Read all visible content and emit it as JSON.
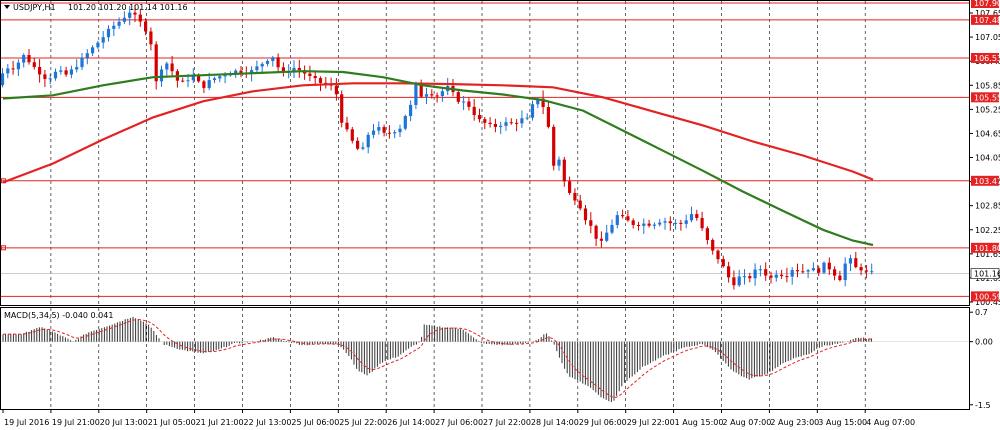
{
  "header": {
    "symbol": "USDJPY,H1",
    "quote": "101.20 101.20 101.14 101.16"
  },
  "colors": {
    "candle_down": "#d40000",
    "candle_up": "#1e74d8",
    "ma_fast": "#e32323",
    "ma_slow": "#2e7d1e",
    "hline": "#e32323",
    "hist": "#333333",
    "signal": "#e32323",
    "grid": "#000000",
    "tag_bg": "#e32323",
    "current_tag_bg": "#ffffff"
  },
  "chart_data": [
    {
      "type": "candlestick",
      "title": "USDJPY,H1",
      "quote": "101.20 101.20 101.14 101.16",
      "ylim": [
        100.45,
        107.9
      ],
      "y_ticks": [
        "107.65",
        "107.05",
        "106.45",
        "105.85",
        "105.25",
        "104.65",
        "104.05",
        "103.45",
        "102.85",
        "102.25",
        "101.65",
        "101.05",
        "100.45"
      ],
      "x_ticks": [
        "19 Jul 2016",
        "19 Jul 21:00",
        "20 Jul 13:00",
        "21 Jul 05:00",
        "21 Jul 21:00",
        "22 Jul 13:00",
        "25 Jul 06:00",
        "25 Jul 22:00",
        "26 Jul 14:00",
        "27 Jul 06:00",
        "27 Jul 22:00",
        "28 Jul 14:00",
        "29 Jul 06:00",
        "29 Jul 22:00",
        "1 Aug 15:00",
        "2 Aug 07:00",
        "2 Aug 23:00",
        "3 Aug 15:00",
        "4 Aug 07:00"
      ],
      "price_path": [
        [
          0,
          105.85
        ],
        [
          8,
          106.3
        ],
        [
          17,
          106.3
        ],
        [
          27,
          106.6
        ],
        [
          37,
          106.3
        ],
        [
          50,
          106.0
        ],
        [
          60,
          106.2
        ],
        [
          70,
          106.1
        ],
        [
          85,
          106.5
        ],
        [
          100,
          106.9
        ],
        [
          115,
          107.3
        ],
        [
          125,
          107.5
        ],
        [
          132,
          107.7
        ],
        [
          140,
          107.5
        ],
        [
          150,
          107.2
        ],
        [
          155,
          106.8
        ],
        [
          160,
          105.7
        ],
        [
          165,
          106.4
        ],
        [
          172,
          106.4
        ],
        [
          178,
          106.0
        ],
        [
          185,
          105.9
        ],
        [
          195,
          106.1
        ],
        [
          205,
          105.8
        ],
        [
          215,
          106.0
        ],
        [
          225,
          106.1
        ],
        [
          235,
          106.2
        ],
        [
          245,
          106.2
        ],
        [
          255,
          106.2
        ],
        [
          265,
          106.4
        ],
        [
          275,
          106.6
        ],
        [
          285,
          106.1
        ],
        [
          295,
          106.3
        ],
        [
          305,
          106.2
        ],
        [
          315,
          106.0
        ],
        [
          325,
          105.9
        ],
        [
          335,
          105.8
        ],
        [
          340,
          105.6
        ],
        [
          345,
          104.9
        ],
        [
          352,
          104.6
        ],
        [
          358,
          104.3
        ],
        [
          365,
          104.2
        ],
        [
          372,
          104.7
        ],
        [
          380,
          104.8
        ],
        [
          388,
          104.6
        ],
        [
          395,
          104.7
        ],
        [
          403,
          104.8
        ],
        [
          408,
          105.1
        ],
        [
          415,
          105.4
        ],
        [
          420,
          106.0
        ],
        [
          425,
          105.5
        ],
        [
          430,
          105.7
        ],
        [
          440,
          105.6
        ],
        [
          450,
          105.8
        ],
        [
          460,
          105.5
        ],
        [
          468,
          105.4
        ],
        [
          474,
          105.3
        ],
        [
          480,
          105.0
        ],
        [
          488,
          104.9
        ],
        [
          495,
          104.8
        ],
        [
          505,
          104.9
        ],
        [
          515,
          104.9
        ],
        [
          525,
          105.0
        ],
        [
          532,
          105.0
        ],
        [
          538,
          105.6
        ],
        [
          543,
          105.5
        ],
        [
          548,
          105.2
        ],
        [
          552,
          104.7
        ],
        [
          556,
          103.8
        ],
        [
          560,
          104.2
        ],
        [
          565,
          103.7
        ],
        [
          570,
          103.1
        ],
        [
          575,
          103.2
        ],
        [
          580,
          102.9
        ],
        [
          585,
          102.8
        ],
        [
          590,
          102.4
        ],
        [
          595,
          102.3
        ],
        [
          600,
          102.0
        ],
        [
          605,
          101.9
        ],
        [
          610,
          102.2
        ],
        [
          615,
          102.4
        ],
        [
          620,
          102.6
        ],
        [
          628,
          102.5
        ],
        [
          635,
          102.4
        ],
        [
          645,
          102.4
        ],
        [
          655,
          102.4
        ],
        [
          665,
          102.5
        ],
        [
          675,
          102.4
        ],
        [
          685,
          102.4
        ],
        [
          692,
          102.6
        ],
        [
          697,
          102.7
        ],
        [
          702,
          102.4
        ],
        [
          708,
          102.1
        ],
        [
          713,
          101.8
        ],
        [
          718,
          101.6
        ],
        [
          723,
          101.5
        ],
        [
          728,
          101.2
        ],
        [
          733,
          101.0
        ],
        [
          738,
          100.9
        ],
        [
          743,
          101.1
        ],
        [
          750,
          101.0
        ],
        [
          757,
          101.2
        ],
        [
          765,
          101.3
        ],
        [
          772,
          101.0
        ],
        [
          780,
          101.2
        ],
        [
          788,
          101.1
        ],
        [
          796,
          101.3
        ],
        [
          804,
          101.2
        ],
        [
          812,
          101.3
        ],
        [
          820,
          101.2
        ],
        [
          828,
          101.4
        ],
        [
          836,
          101.2
        ],
        [
          842,
          101.0
        ],
        [
          848,
          101.4
        ],
        [
          853,
          101.5
        ],
        [
          858,
          101.3
        ],
        [
          863,
          101.3
        ],
        [
          870,
          101.16
        ]
      ],
      "series": [
        {
          "type": "line",
          "role": "ma_fast",
          "points": [
            [
              0,
              103.43
            ],
            [
              50,
              103.9
            ],
            [
              100,
              104.5
            ],
            [
              150,
              105.05
            ],
            [
              200,
              105.45
            ],
            [
              250,
              105.7
            ],
            [
              300,
              105.85
            ],
            [
              350,
              105.9
            ],
            [
              400,
              105.9
            ],
            [
              450,
              105.88
            ],
            [
              500,
              105.85
            ],
            [
              550,
              105.8
            ],
            [
              600,
              105.55
            ],
            [
              650,
              105.2
            ],
            [
              700,
              104.85
            ],
            [
              750,
              104.45
            ],
            [
              800,
              104.1
            ],
            [
              850,
              103.7
            ],
            [
              870,
              103.5
            ]
          ]
        },
        {
          "type": "line",
          "role": "ma_slow",
          "points": [
            [
              0,
              105.52
            ],
            [
              50,
              105.6
            ],
            [
              100,
              105.85
            ],
            [
              150,
              106.05
            ],
            [
              200,
              106.1
            ],
            [
              250,
              106.15
            ],
            [
              300,
              106.2
            ],
            [
              340,
              106.18
            ],
            [
              380,
              106.05
            ],
            [
              420,
              105.85
            ],
            [
              460,
              105.72
            ],
            [
              500,
              105.62
            ],
            [
              540,
              105.48
            ],
            [
              580,
              105.22
            ],
            [
              620,
              104.72
            ],
            [
              660,
              104.22
            ],
            [
              700,
              103.72
            ],
            [
              740,
              103.2
            ],
            [
              780,
              102.72
            ],
            [
              820,
              102.25
            ],
            [
              850,
              101.98
            ],
            [
              870,
              101.87
            ]
          ]
        }
      ],
      "hlines": [
        {
          "label": "107.90",
          "value": 107.9
        },
        {
          "label": "107.48",
          "value": 107.48
        },
        {
          "label": "106.53",
          "value": 106.53
        },
        {
          "label": "105.55",
          "value": 105.55
        },
        {
          "label": "103.47",
          "value": 103.47
        },
        {
          "label": "101.80",
          "value": 101.8
        },
        {
          "label": "100.59",
          "value": 100.59
        }
      ],
      "current_price": {
        "label": "101.16",
        "value": 101.16
      }
    },
    {
      "type": "bar",
      "title": "MACD(5,34,5) -0.040 0.041",
      "ylim": [
        -1.6,
        0.8
      ],
      "y_ticks": [
        "0.7",
        "0.00",
        "-1.5"
      ],
      "tick_values": [
        0.7,
        0.0,
        -1.5
      ],
      "macd_path": [
        [
          0,
          0.18
        ],
        [
          20,
          0.18
        ],
        [
          30,
          0.3
        ],
        [
          40,
          0.34
        ],
        [
          55,
          0.18
        ],
        [
          70,
          0.0
        ],
        [
          85,
          0.22
        ],
        [
          110,
          0.42
        ],
        [
          130,
          0.6
        ],
        [
          145,
          0.42
        ],
        [
          158,
          0.02
        ],
        [
          160,
          -0.06
        ],
        [
          180,
          -0.2
        ],
        [
          200,
          -0.28
        ],
        [
          215,
          -0.2
        ],
        [
          230,
          -0.05
        ],
        [
          250,
          0.0
        ],
        [
          270,
          0.1
        ],
        [
          285,
          0.0
        ],
        [
          300,
          -0.08
        ],
        [
          320,
          -0.05
        ],
        [
          335,
          -0.05
        ],
        [
          345,
          -0.3
        ],
        [
          355,
          -0.7
        ],
        [
          365,
          -0.8
        ],
        [
          378,
          -0.5
        ],
        [
          395,
          -0.35
        ],
        [
          410,
          -0.1
        ],
        [
          418,
          0.0
        ],
        [
          420,
          0.4
        ],
        [
          440,
          0.35
        ],
        [
          460,
          0.3
        ],
        [
          470,
          0.1
        ],
        [
          480,
          -0.05
        ],
        [
          500,
          -0.08
        ],
        [
          520,
          -0.05
        ],
        [
          535,
          0.05
        ],
        [
          543,
          0.2
        ],
        [
          550,
          0.0
        ],
        [
          553,
          -0.2
        ],
        [
          565,
          -0.8
        ],
        [
          585,
          -1.05
        ],
        [
          600,
          -1.35
        ],
        [
          610,
          -1.45
        ],
        [
          620,
          -1.0
        ],
        [
          640,
          -0.6
        ],
        [
          660,
          -0.35
        ],
        [
          680,
          -0.15
        ],
        [
          700,
          -0.05
        ],
        [
          710,
          -0.2
        ],
        [
          730,
          -0.7
        ],
        [
          745,
          -0.9
        ],
        [
          765,
          -0.75
        ],
        [
          785,
          -0.45
        ],
        [
          805,
          -0.3
        ],
        [
          820,
          -0.1
        ],
        [
          835,
          -0.05
        ],
        [
          845,
          0.0
        ],
        [
          855,
          0.1
        ],
        [
          870,
          0.06
        ]
      ]
    }
  ]
}
